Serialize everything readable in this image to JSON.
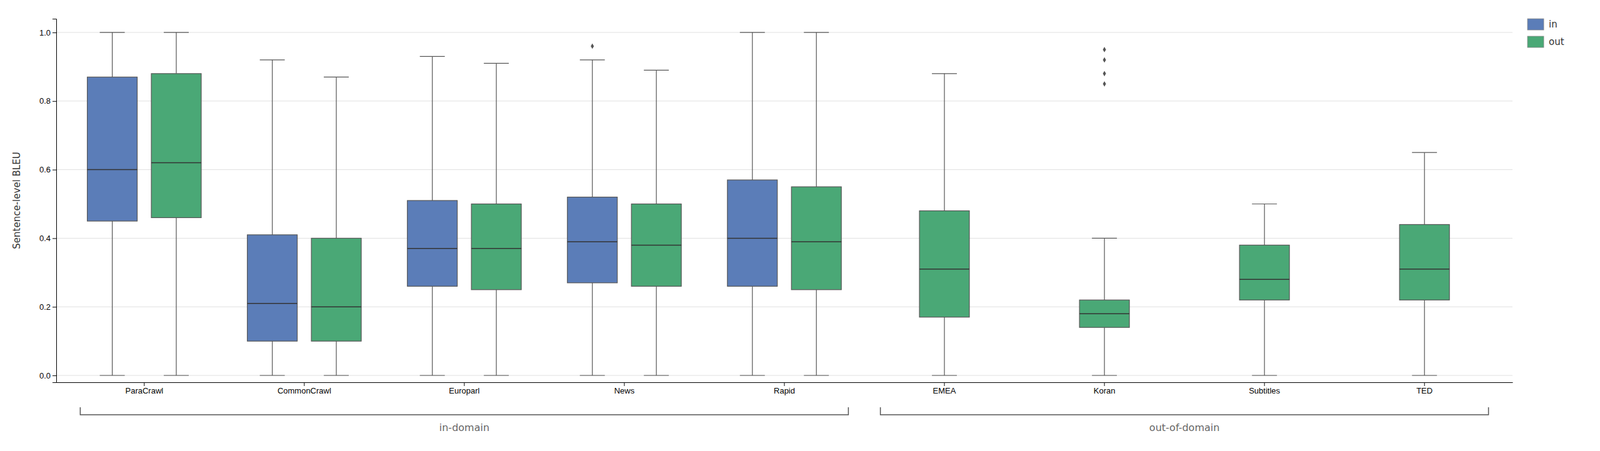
{
  "chart_data": {
    "type": "box",
    "y_label": "Sentence-level BLEU",
    "categories": [
      "ParaCrawl",
      "CommonCrawl",
      "Europarl",
      "News",
      "Rapid",
      "EMEA",
      "Koran",
      "Subtitles",
      "TED"
    ],
    "series": [
      {
        "name": "in",
        "color": "#5B7DB8",
        "values": [
          {
            "low": 0.0,
            "q1": 0.45,
            "median": 0.6,
            "q3": 0.87,
            "high": 1.0,
            "outliers": []
          },
          {
            "low": 0.0,
            "q1": 0.1,
            "median": 0.21,
            "q3": 0.41,
            "high": 0.92,
            "outliers": []
          },
          {
            "low": 0.0,
            "q1": 0.26,
            "median": 0.37,
            "q3": 0.51,
            "high": 0.93,
            "outliers": []
          },
          {
            "low": 0.0,
            "q1": 0.27,
            "median": 0.39,
            "q3": 0.52,
            "high": 0.92,
            "outliers": [
              0.96
            ]
          },
          {
            "low": 0.0,
            "q1": 0.26,
            "median": 0.4,
            "q3": 0.57,
            "high": 1.0,
            "outliers": []
          },
          null,
          null,
          null,
          null
        ]
      },
      {
        "name": "out",
        "color": "#4AA876",
        "values": [
          {
            "low": 0.0,
            "q1": 0.46,
            "median": 0.62,
            "q3": 0.88,
            "high": 1.0,
            "outliers": []
          },
          {
            "low": 0.0,
            "q1": 0.1,
            "median": 0.2,
            "q3": 0.4,
            "high": 0.87,
            "outliers": []
          },
          {
            "low": 0.0,
            "q1": 0.25,
            "median": 0.37,
            "q3": 0.5,
            "high": 0.91,
            "outliers": []
          },
          {
            "low": 0.0,
            "q1": 0.26,
            "median": 0.38,
            "q3": 0.5,
            "high": 0.89,
            "outliers": []
          },
          {
            "low": 0.0,
            "q1": 0.25,
            "median": 0.39,
            "q3": 0.55,
            "high": 1.0,
            "outliers": []
          },
          {
            "low": 0.0,
            "q1": 0.17,
            "median": 0.31,
            "q3": 0.48,
            "high": 0.88,
            "outliers": []
          },
          {
            "low": 0.0,
            "q1": 0.14,
            "median": 0.18,
            "q3": 0.22,
            "high": 0.4,
            "outliers": [
              0.85,
              0.88,
              0.92,
              0.95
            ]
          },
          {
            "low": 0.0,
            "q1": 0.22,
            "median": 0.28,
            "q3": 0.38,
            "high": 0.5,
            "outliers": []
          },
          {
            "low": 0.0,
            "q1": 0.22,
            "median": 0.31,
            "q3": 0.44,
            "high": 0.65,
            "outliers": []
          }
        ]
      }
    ],
    "annotations": [
      {
        "text": "in-domain",
        "from": "ParaCrawl",
        "to": "Rapid"
      },
      {
        "text": "out-of-domain",
        "from": "EMEA",
        "to": "TED"
      }
    ],
    "ylim": [
      -0.02,
      1.04
    ],
    "yticks": [
      {
        "value": 0.0,
        "label": "0.0"
      },
      {
        "value": 0.2,
        "label": "0.2"
      },
      {
        "value": 0.4,
        "label": "0.4"
      },
      {
        "value": 0.6,
        "label": "0.6"
      },
      {
        "value": 0.8,
        "label": "0.8"
      },
      {
        "value": 1.0,
        "label": "1.0"
      }
    ],
    "grid": true,
    "legend": "upper right"
  }
}
